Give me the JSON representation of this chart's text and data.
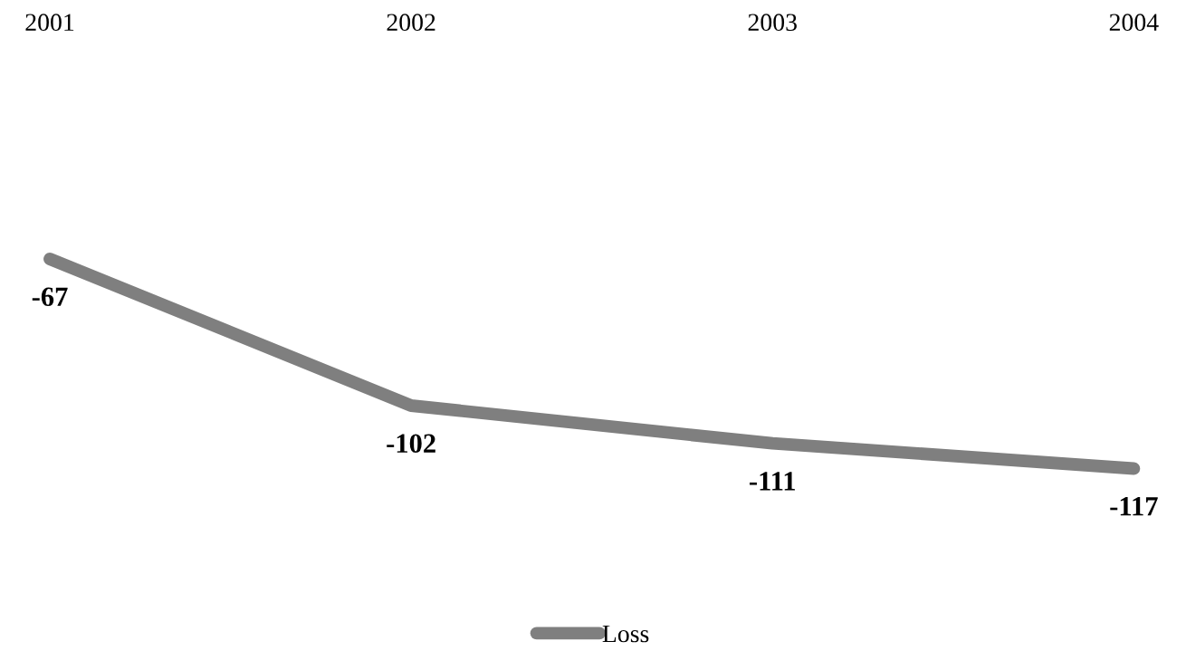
{
  "chart_data": {
    "type": "line",
    "categories": [
      "2001",
      "2002",
      "2003",
      "2004"
    ],
    "series": [
      {
        "name": "Loss",
        "color": "#7f7f7f",
        "values": [
          -67,
          -102,
          -111,
          -117
        ]
      }
    ],
    "tick_labels": "x",
    "data_labels": true,
    "legend": "bottom",
    "grid": false,
    "line_style": "solid"
  }
}
